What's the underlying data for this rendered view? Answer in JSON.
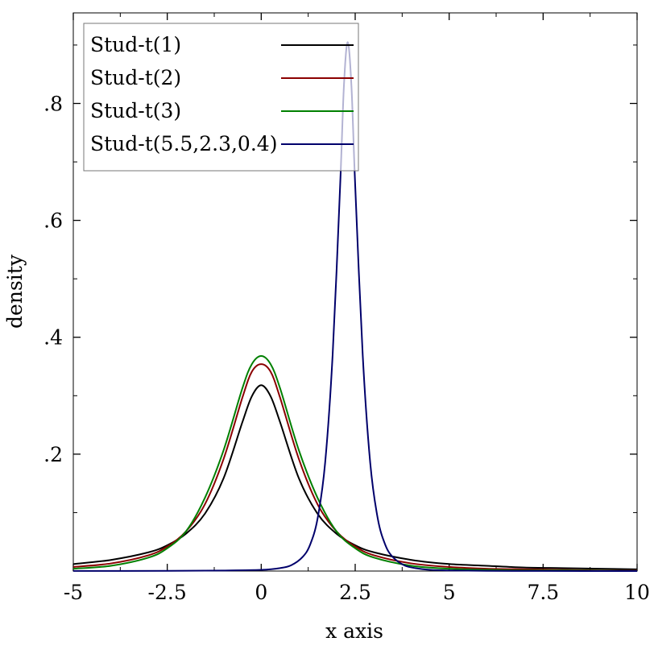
{
  "chart_data": {
    "type": "line",
    "xlabel": "x axis",
    "ylabel": "density",
    "xlim": [
      -5,
      10
    ],
    "ylim": [
      0,
      0.955
    ],
    "x_ticks": [
      -5,
      -2.5,
      0,
      2.5,
      5,
      7.5,
      10
    ],
    "x_tick_labels": [
      "-5",
      "-2.5",
      "0",
      "2.5",
      "5",
      "7.5",
      "10"
    ],
    "y_ticks": [
      0.2,
      0.4,
      0.6,
      0.8
    ],
    "y_tick_labels": [
      ".2",
      ".4",
      ".6",
      ".8"
    ],
    "y_minor_ticks": [
      0.1,
      0.3,
      0.5,
      0.7,
      0.9
    ],
    "x_minor_ticks": [
      -3.75,
      -1.25,
      1.25,
      3.75,
      6.25,
      8.75
    ],
    "grid": false,
    "legend_position": "top-left",
    "series": [
      {
        "name": "Stud-t(1)",
        "color": "#000000",
        "x": [
          -5,
          -4,
          -3,
          -2.5,
          -2,
          -1.5,
          -1,
          -0.5,
          -0.25,
          0,
          0.25,
          0.5,
          1,
          1.5,
          2,
          2.5,
          3,
          4,
          5,
          6,
          7,
          8,
          9,
          10
        ],
        "y": [
          0.012,
          0.019,
          0.032,
          0.044,
          0.064,
          0.098,
          0.159,
          0.255,
          0.299,
          0.318,
          0.299,
          0.255,
          0.159,
          0.098,
          0.064,
          0.044,
          0.032,
          0.019,
          0.012,
          0.009,
          0.006,
          0.005,
          0.004,
          0.003
        ]
      },
      {
        "name": "Stud-t(2)",
        "color": "#8b0000",
        "x": [
          -5,
          -4,
          -3,
          -2.5,
          -2,
          -1.5,
          -1,
          -0.5,
          -0.25,
          0,
          0.25,
          0.5,
          1,
          1.5,
          2,
          2.5,
          3,
          4,
          5,
          6,
          7,
          8,
          9,
          10
        ],
        "y": [
          0.007,
          0.013,
          0.027,
          0.042,
          0.068,
          0.114,
          0.192,
          0.297,
          0.341,
          0.354,
          0.341,
          0.297,
          0.192,
          0.114,
          0.068,
          0.042,
          0.027,
          0.013,
          0.007,
          0.004,
          0.003,
          0.002,
          0.001,
          0.001
        ]
      },
      {
        "name": "Stud-t(3)",
        "color": "#008000",
        "x": [
          -5,
          -4,
          -3,
          -2.5,
          -2,
          -1.5,
          -1,
          -0.5,
          -0.25,
          0,
          0.25,
          0.5,
          1,
          1.5,
          2,
          2.5,
          3,
          4,
          5,
          6,
          7,
          8,
          9,
          10
        ],
        "y": [
          0.004,
          0.009,
          0.023,
          0.039,
          0.068,
          0.125,
          0.207,
          0.313,
          0.354,
          0.368,
          0.354,
          0.313,
          0.207,
          0.125,
          0.068,
          0.039,
          0.023,
          0.009,
          0.004,
          0.002,
          0.001,
          0.001,
          0.0005,
          0.0003
        ]
      },
      {
        "name": "Stud-t(5.5,2.3,0.4)",
        "color": "#00006b",
        "x": [
          -5,
          -2.5,
          -1,
          0,
          0.5,
          0.8,
          1.1,
          1.3,
          1.5,
          1.7,
          1.9,
          2.1,
          2.2,
          2.3,
          2.4,
          2.5,
          2.7,
          2.9,
          3.1,
          3.3,
          3.5,
          3.8,
          4.1,
          4.5,
          5,
          6,
          7.5,
          10
        ],
        "y": [
          0.0001,
          0.0003,
          0.0009,
          0.002,
          0.005,
          0.01,
          0.024,
          0.045,
          0.09,
          0.185,
          0.37,
          0.66,
          0.83,
          0.905,
          0.83,
          0.66,
          0.37,
          0.185,
          0.09,
          0.045,
          0.024,
          0.01,
          0.005,
          0.002,
          0.001,
          0.0003,
          0.0001,
          2e-05
        ]
      }
    ]
  }
}
